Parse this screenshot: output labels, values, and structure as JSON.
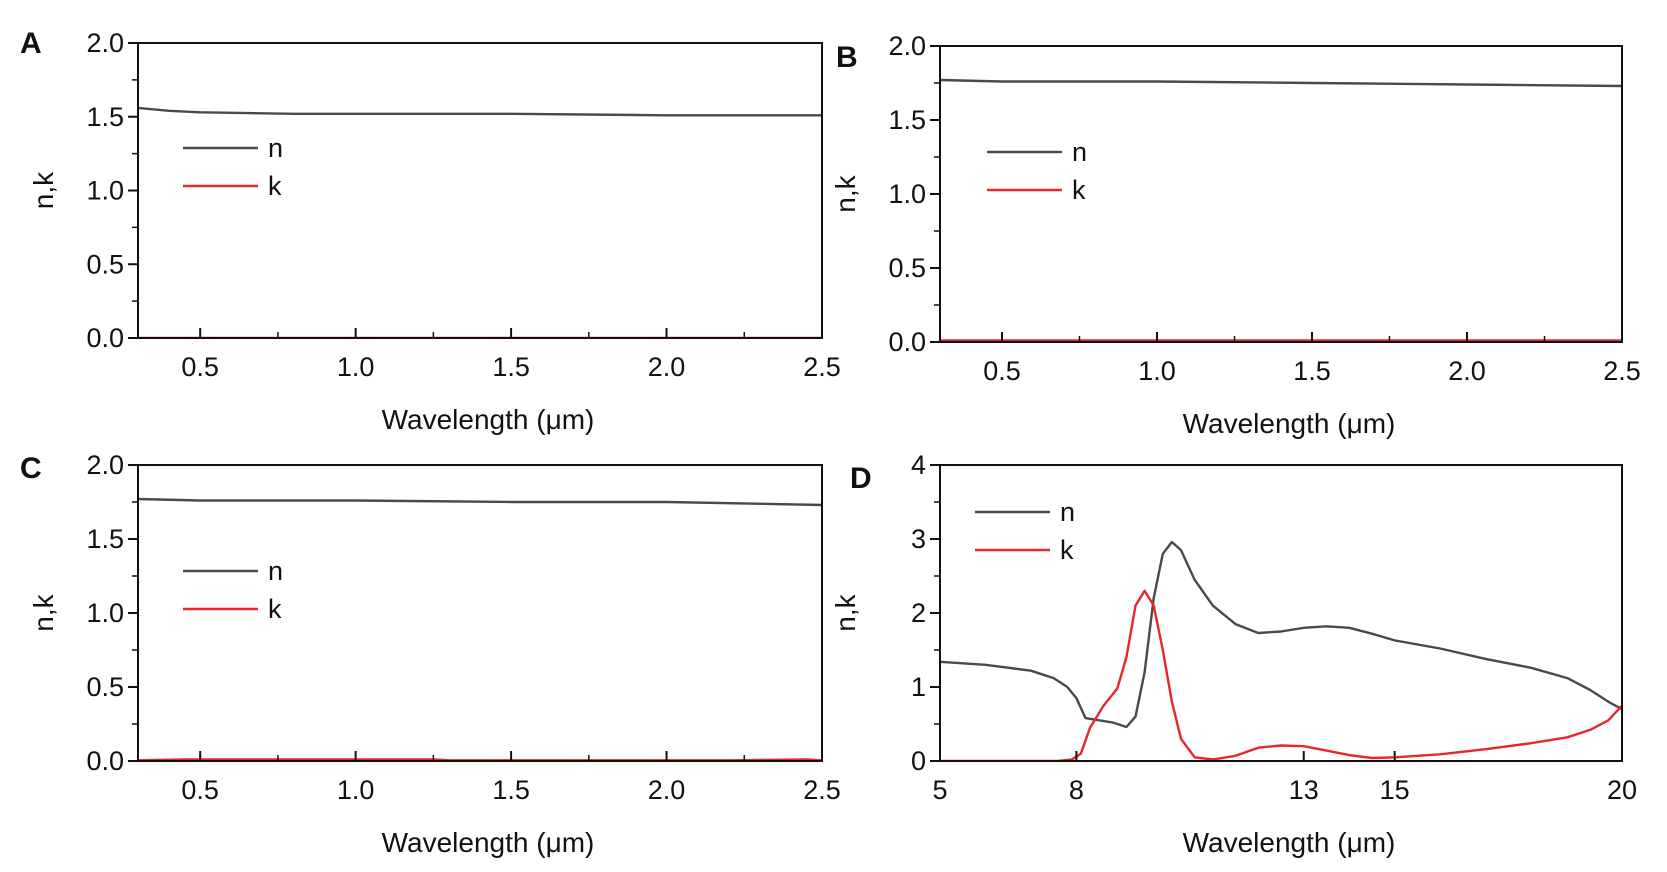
{
  "figure": {
    "colors": {
      "n": "#4a4a4a",
      "k": "#e8262b",
      "axis": "#111111"
    }
  },
  "chart_data": [
    {
      "panel": "A",
      "type": "line",
      "xlabel": "Wavelength (μm)",
      "ylabel": "n,k",
      "xlim": [
        0.3,
        2.5
      ],
      "ylim": [
        0,
        2.0
      ],
      "xticks": [
        0.5,
        1.0,
        1.5,
        2.0,
        2.5
      ],
      "xtick_labels": [
        "0.5",
        "1.0",
        "1.5",
        "2.0",
        "2.5"
      ],
      "yticks": [
        0,
        0.5,
        1.0,
        1.5,
        2.0
      ],
      "ytick_labels": [
        "0.0",
        "0.5",
        "1.0",
        "1.5",
        "2.0"
      ],
      "legend": "top-left",
      "series": [
        {
          "name": "n",
          "color": "#4a4a4a",
          "x": [
            0.3,
            0.4,
            0.5,
            0.8,
            1.0,
            1.5,
            2.0,
            2.5
          ],
          "y": [
            1.56,
            1.54,
            1.53,
            1.52,
            1.52,
            1.52,
            1.51,
            1.51
          ]
        },
        {
          "name": "k",
          "color": "#e8262b",
          "x": [
            0.3,
            2.5
          ],
          "y": [
            0.0,
            0.0
          ]
        }
      ]
    },
    {
      "panel": "B",
      "type": "line",
      "xlabel": "Wavelength (μm)",
      "ylabel": "n,k",
      "xlim": [
        0.3,
        2.5
      ],
      "ylim": [
        0,
        2.0
      ],
      "xticks": [
        0.5,
        1.0,
        1.5,
        2.0,
        2.5
      ],
      "xtick_labels": [
        "0.5",
        "1.0",
        "1.5",
        "2.0",
        "2.5"
      ],
      "yticks": [
        0,
        0.5,
        1.0,
        1.5,
        2.0
      ],
      "ytick_labels": [
        "0.0",
        "0.5",
        "1.0",
        "1.5",
        "2.0"
      ],
      "legend": "top-left",
      "series": [
        {
          "name": "n",
          "color": "#4a4a4a",
          "x": [
            0.3,
            0.5,
            1.0,
            1.5,
            2.0,
            2.5
          ],
          "y": [
            1.77,
            1.76,
            1.76,
            1.75,
            1.74,
            1.73
          ]
        },
        {
          "name": "k",
          "color": "#e8262b",
          "x": [
            0.3,
            2.5
          ],
          "y": [
            0.01,
            0.01
          ]
        }
      ]
    },
    {
      "panel": "C",
      "type": "line",
      "xlabel": "Wavelength (μm)",
      "ylabel": "n,k",
      "xlim": [
        0.3,
        2.5
      ],
      "ylim": [
        0,
        2.0
      ],
      "xticks": [
        0.5,
        1.0,
        1.5,
        2.0,
        2.5
      ],
      "xtick_labels": [
        "0.5",
        "1.0",
        "1.5",
        "2.0",
        "2.5"
      ],
      "yticks": [
        0,
        0.5,
        1.0,
        1.5,
        2.0
      ],
      "ytick_labels": [
        "0.0",
        "0.5",
        "1.0",
        "1.5",
        "2.0"
      ],
      "legend": "top-left",
      "series": [
        {
          "name": "n",
          "color": "#4a4a4a",
          "x": [
            0.3,
            0.5,
            1.0,
            1.5,
            2.0,
            2.5
          ],
          "y": [
            1.77,
            1.76,
            1.76,
            1.75,
            1.75,
            1.73
          ]
        },
        {
          "name": "k",
          "color": "#e8262b",
          "x": [
            0.3,
            0.45,
            1.25,
            1.3,
            2.2,
            2.45,
            2.5
          ],
          "y": [
            0.005,
            0.01,
            0.01,
            0.005,
            0.005,
            0.01,
            0.005
          ]
        }
      ]
    },
    {
      "panel": "D",
      "type": "line",
      "xlabel": "Wavelength (μm)",
      "ylabel": "n,k",
      "xlim": [
        5,
        20
      ],
      "ylim": [
        0,
        4
      ],
      "xticks": [
        5,
        8,
        13,
        15,
        20
      ],
      "xtick_labels": [
        "5",
        "8",
        "13",
        "15",
        "20"
      ],
      "yticks": [
        0,
        1,
        2,
        3,
        4
      ],
      "ytick_labels": [
        "0",
        "1",
        "2",
        "3",
        "4"
      ],
      "legend": "top-left",
      "series": [
        {
          "name": "n",
          "color": "#4a4a4a",
          "x": [
            5,
            6,
            7,
            7.5,
            7.8,
            8.0,
            8.2,
            8.5,
            8.8,
            9.1,
            9.3,
            9.5,
            9.7,
            9.9,
            10.1,
            10.3,
            10.6,
            11.0,
            11.5,
            12.0,
            12.5,
            13.0,
            13.5,
            14.0,
            14.5,
            15.0,
            16.0,
            17.0,
            18.0,
            18.8,
            19.3,
            19.7,
            20.0
          ],
          "y": [
            1.34,
            1.3,
            1.22,
            1.12,
            1.0,
            0.85,
            0.58,
            0.55,
            0.52,
            0.46,
            0.6,
            1.2,
            2.2,
            2.8,
            2.96,
            2.85,
            2.45,
            2.1,
            1.85,
            1.73,
            1.75,
            1.8,
            1.82,
            1.8,
            1.72,
            1.63,
            1.52,
            1.38,
            1.26,
            1.12,
            0.96,
            0.8,
            0.7
          ]
        },
        {
          "name": "k",
          "color": "#e8262b",
          "x": [
            5,
            6,
            7,
            7.6,
            7.9,
            8.1,
            8.3,
            8.6,
            8.9,
            9.1,
            9.3,
            9.5,
            9.7,
            9.9,
            10.1,
            10.3,
            10.6,
            11.0,
            11.5,
            12.0,
            12.5,
            13.0,
            13.5,
            14.0,
            14.5,
            15.0,
            16.0,
            17.0,
            18.0,
            18.8,
            19.3,
            19.7,
            20.0
          ],
          "y": [
            0.0,
            0.0,
            0.0,
            0.0,
            0.02,
            0.1,
            0.45,
            0.75,
            0.98,
            1.4,
            2.1,
            2.3,
            2.1,
            1.5,
            0.8,
            0.3,
            0.05,
            0.02,
            0.07,
            0.18,
            0.21,
            0.2,
            0.14,
            0.08,
            0.04,
            0.05,
            0.09,
            0.16,
            0.24,
            0.32,
            0.42,
            0.55,
            0.75
          ]
        }
      ]
    }
  ]
}
